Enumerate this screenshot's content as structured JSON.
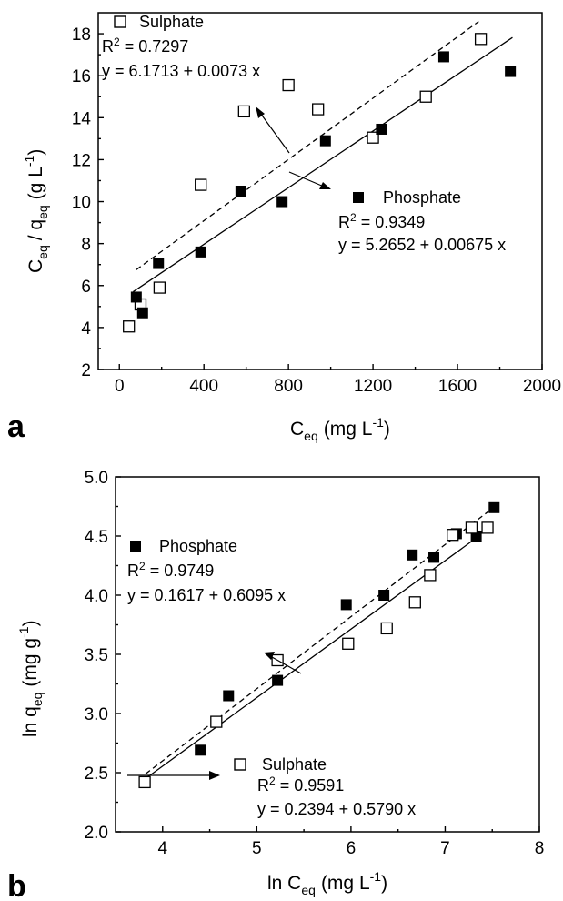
{
  "panels": [
    {
      "letter": "a",
      "xlabel": "C",
      "xlabel_sub": "eq",
      "xlabel_unit": "(mg L",
      "xlabel_sup": "-1",
      "xlabel_close": ")",
      "ylabel_a": "C",
      "ylabel_a_sub": "eq",
      "ylabel_mid": "/ q",
      "ylabel_b_sub": "eq",
      "ylabel_unit": "(g L",
      "ylabel_sup": "-1",
      "ylabel_close": ")",
      "annot_sulphate": {
        "label": "Sulphate",
        "r2_prefix": "R",
        "r2_sup": "2",
        "r2_value": " = 0.7297",
        "eq": "y = 6.1713 + 0.0073 x"
      },
      "annot_phosphate": {
        "label": "Phosphate",
        "r2_prefix": "R",
        "r2_sup": "2",
        "r2_value": " = 0.9349",
        "eq": "y = 5.2652 + 0.00675 x"
      }
    },
    {
      "letter": "b",
      "xlabel": "ln C",
      "xlabel_sub": "eq",
      "xlabel_unit": "(mg L",
      "xlabel_sup": "-1",
      "xlabel_close": ")",
      "ylabel_a": "ln q",
      "ylabel_a_sub": "eq",
      "ylabel_unit": "(mg g",
      "ylabel_sup": "-1",
      "ylabel_close": ")",
      "annot_phosphate": {
        "label": "Phosphate",
        "r2_prefix": "R",
        "r2_sup": "2",
        "r2_value": " = 0.9749",
        "eq": "y = 0.1617 + 0.6095 x"
      },
      "annot_sulphate": {
        "label": "Sulphate",
        "r2_prefix": "R",
        "r2_sup": "2",
        "r2_value": " = 0.9591",
        "eq": "y = 0.2394 + 0.5790 x"
      }
    }
  ],
  "chart_data": [
    {
      "type": "scatter",
      "xlim": [
        -100,
        2000
      ],
      "ylim": [
        2,
        19
      ],
      "xticks": [
        0,
        400,
        800,
        1200,
        1600,
        2000
      ],
      "yticks": [
        2,
        4,
        6,
        8,
        10,
        12,
        14,
        16,
        18
      ],
      "series": [
        {
          "name": "Sulphate",
          "marker": "open-square",
          "x": [
            45,
            100,
            190,
            385,
            590,
            800,
            940,
            1200,
            1450,
            1710
          ],
          "y": [
            4.05,
            5.1,
            5.9,
            10.8,
            14.3,
            15.55,
            14.4,
            13.05,
            15.0,
            17.75
          ],
          "fit": {
            "intercept": 6.1713,
            "slope": 0.0073,
            "x_range": [
              80,
              1700
            ],
            "style": "dashed"
          }
        },
        {
          "name": "Phosphate",
          "marker": "filled-square",
          "x": [
            80,
            110,
            185,
            385,
            575,
            770,
            975,
            1240,
            1535,
            1850
          ],
          "y": [
            5.45,
            4.7,
            7.05,
            7.6,
            10.5,
            10.0,
            12.9,
            13.45,
            16.9,
            16.2
          ],
          "fit": {
            "intercept": 5.2652,
            "slope": 0.00675,
            "x_range": [
              65,
              1860
            ],
            "style": "solid"
          }
        }
      ]
    },
    {
      "type": "scatter",
      "xlim": [
        3.5,
        8
      ],
      "ylim": [
        2.0,
        5.0
      ],
      "xticks": [
        4,
        5,
        6,
        7,
        8
      ],
      "yticks": [
        2.0,
        2.5,
        3.0,
        3.5,
        4.0,
        4.5,
        5.0
      ],
      "series": [
        {
          "name": "Phosphate",
          "marker": "filled-square",
          "x": [
            4.4,
            4.7,
            5.22,
            5.95,
            6.35,
            6.65,
            6.88,
            7.12,
            7.33,
            7.52
          ],
          "y": [
            2.69,
            3.15,
            3.28,
            3.92,
            4.0,
            4.34,
            4.32,
            4.52,
            4.5,
            4.74
          ],
          "fit": {
            "intercept": 0.1617,
            "slope": 0.6095,
            "x_range": [
              3.82,
              7.5
            ],
            "style": "dashed"
          }
        },
        {
          "name": "Sulphate",
          "marker": "open-square",
          "x": [
            3.81,
            4.57,
            5.22,
            5.97,
            6.38,
            6.68,
            6.84,
            7.08,
            7.28,
            7.45
          ],
          "y": [
            2.42,
            2.93,
            3.45,
            3.59,
            3.72,
            3.94,
            4.17,
            4.51,
            4.57,
            4.57
          ],
          "fit": {
            "intercept": 0.2394,
            "slope": 0.579,
            "x_range": [
              3.82,
              7.33
            ],
            "style": "solid"
          }
        }
      ]
    }
  ]
}
